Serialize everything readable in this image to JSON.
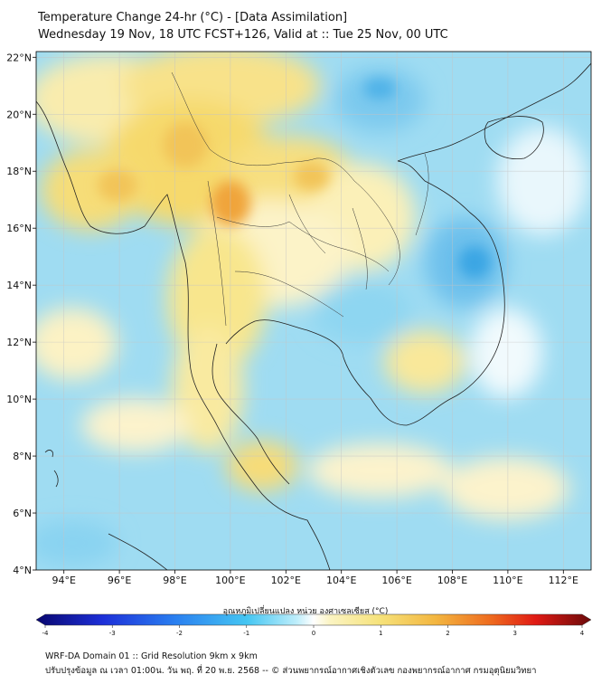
{
  "header": {
    "title_line1": "Temperature Change 24-hr (°C) - [Data Assimilation]",
    "title_line2": "Wednesday 19 Nov, 18 UTC FCST+126, Valid at :: Tue 25 Nov, 00 UTC"
  },
  "map": {
    "lat_labels": [
      "22°N",
      "20°N",
      "18°N",
      "16°N",
      "14°N",
      "12°N",
      "10°N",
      "8°N",
      "6°N",
      "4°N"
    ],
    "lat_values": [
      22,
      20,
      18,
      16,
      14,
      12,
      10,
      8,
      6,
      4
    ],
    "lon_labels": [
      "94°E",
      "96°E",
      "98°E",
      "100°E",
      "102°E",
      "104°E",
      "106°E",
      "108°E",
      "110°E",
      "112°E"
    ],
    "lon_values": [
      94,
      96,
      98,
      100,
      102,
      104,
      106,
      108,
      110,
      112
    ],
    "lon_range": [
      93,
      113
    ],
    "lat_range": [
      4,
      22.2
    ],
    "colors": {
      "ocean_blue": "#7fd3ef",
      "warm_yellow": "#f6e27a",
      "hot_orange": "#f0a43a",
      "land_line": "#222222"
    }
  },
  "colorbar": {
    "title": "อุณหภูมิเปลี่ยนแปลง หน่วย องศาเซลเซียส (°C)",
    "tick_labels": [
      "-4",
      "-3",
      "-2",
      "-1",
      "0",
      "1",
      "2",
      "3",
      "4"
    ],
    "tick_values": [
      -4,
      -3,
      -2,
      -1,
      0,
      1,
      2,
      3,
      4
    ]
  },
  "footer": {
    "line1": "WRF-DA Domain 01 :: Grid Resolution 9km x 9km",
    "line2": "ปรับปรุงข้อมูล ณ เวลา 01:00น. วัน พฤ. ที่ 20 พ.ย. 2568 -- © ส่วนพยากรณ์อากาศเชิงตัวเลข กองพยากรณ์อากาศ กรมอุตุนิยมวิทยา"
  }
}
